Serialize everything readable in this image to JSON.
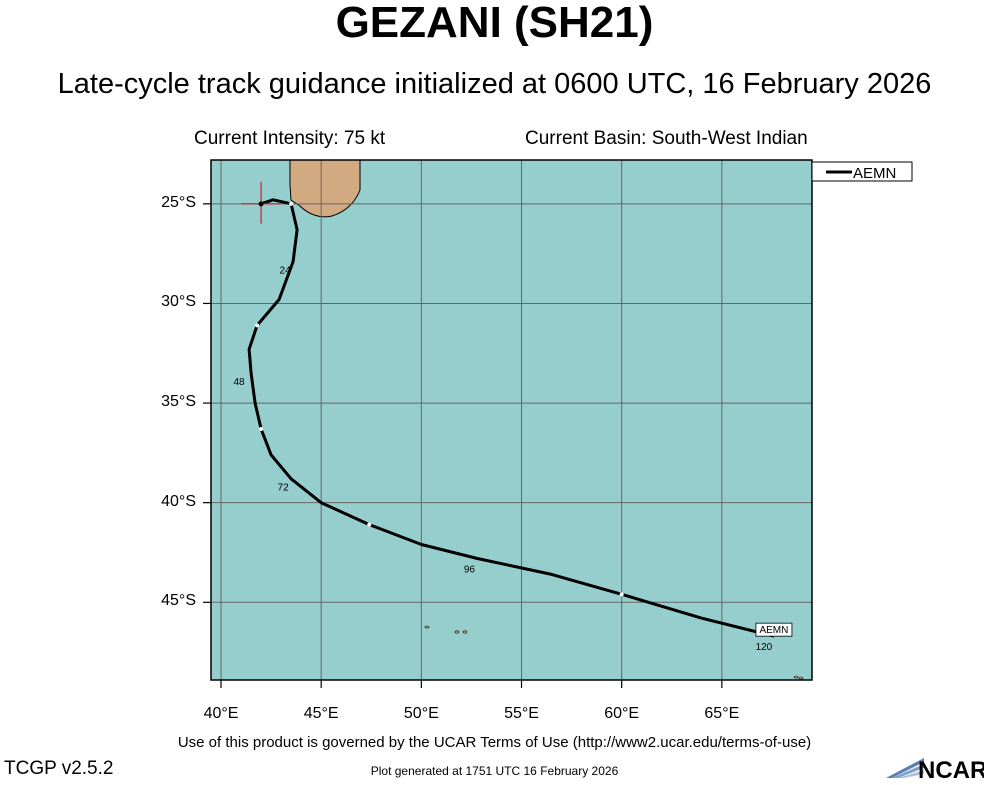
{
  "title": "GEZANI (SH21)",
  "subtitle": "Late-cycle track guidance initialized at 0600 UTC, 16 February 2026",
  "current_intensity": "Current Intensity: 75 kt",
  "current_basin": "Current Basin: South-West Indian",
  "legend": {
    "label": "AEMN",
    "color": "#000000"
  },
  "colors": {
    "ocean": "#96cdcd",
    "land": "#d2aa82",
    "grid": "#666666",
    "track": "#000000",
    "current_position_marker": "#cc2222"
  },
  "lat_labels": [
    "25°S",
    "30°S",
    "35°S",
    "40°S",
    "45°S"
  ],
  "lon_labels": [
    "40°E",
    "45°E",
    "50°E",
    "55°E",
    "60°E",
    "65°E"
  ],
  "map_extent": {
    "lon_min": 39.5,
    "lon_max": 69.5,
    "lat_min": -48.9,
    "lat_max": -22.8
  },
  "track": {
    "model": "AEMN",
    "points": [
      {
        "lon": 42.0,
        "lat": -25.0
      },
      {
        "lon": 42.6,
        "lat": -24.8
      },
      {
        "lon": 43.5,
        "lat": -25.0
      },
      {
        "lon": 43.8,
        "lat": -26.3
      },
      {
        "lon": 43.6,
        "lat": -27.9
      },
      {
        "lon": 42.9,
        "lat": -29.8
      },
      {
        "lon": 41.8,
        "lat": -31.1
      },
      {
        "lon": 41.4,
        "lat": -32.3
      },
      {
        "lon": 41.5,
        "lat": -33.5
      },
      {
        "lon": 41.7,
        "lat": -35.0
      },
      {
        "lon": 42.0,
        "lat": -36.3
      },
      {
        "lon": 42.5,
        "lat": -37.6
      },
      {
        "lon": 43.5,
        "lat": -38.8
      },
      {
        "lon": 45.0,
        "lat": -40.0
      },
      {
        "lon": 47.4,
        "lat": -41.1
      },
      {
        "lon": 50.0,
        "lat": -42.1
      },
      {
        "lon": 52.8,
        "lat": -42.8
      },
      {
        "lon": 56.5,
        "lat": -43.6
      },
      {
        "lon": 60.0,
        "lat": -44.6
      },
      {
        "lon": 64.0,
        "lat": -45.8
      },
      {
        "lon": 67.6,
        "lat": -46.7
      }
    ],
    "tau_labels": [
      {
        "text": "24",
        "lon": 43.2,
        "lat": -28.3
      },
      {
        "text": "48",
        "lon": 40.9,
        "lat": -33.9
      },
      {
        "text": "72",
        "lon": 43.1,
        "lat": -39.2
      },
      {
        "text": "96",
        "lon": 52.4,
        "lat": -43.3
      },
      {
        "text": "120",
        "lon": 67.1,
        "lat": -47.2
      }
    ],
    "end_label": "AEMN"
  },
  "terms": "Use of this product is governed by the UCAR Terms of Use (http://www2.ucar.edu/terms-of-use)",
  "version": "TCGP v2.5.2",
  "generated": "Plot generated at 1751 UTC   16 February 2026",
  "logo_text": "NCAR"
}
